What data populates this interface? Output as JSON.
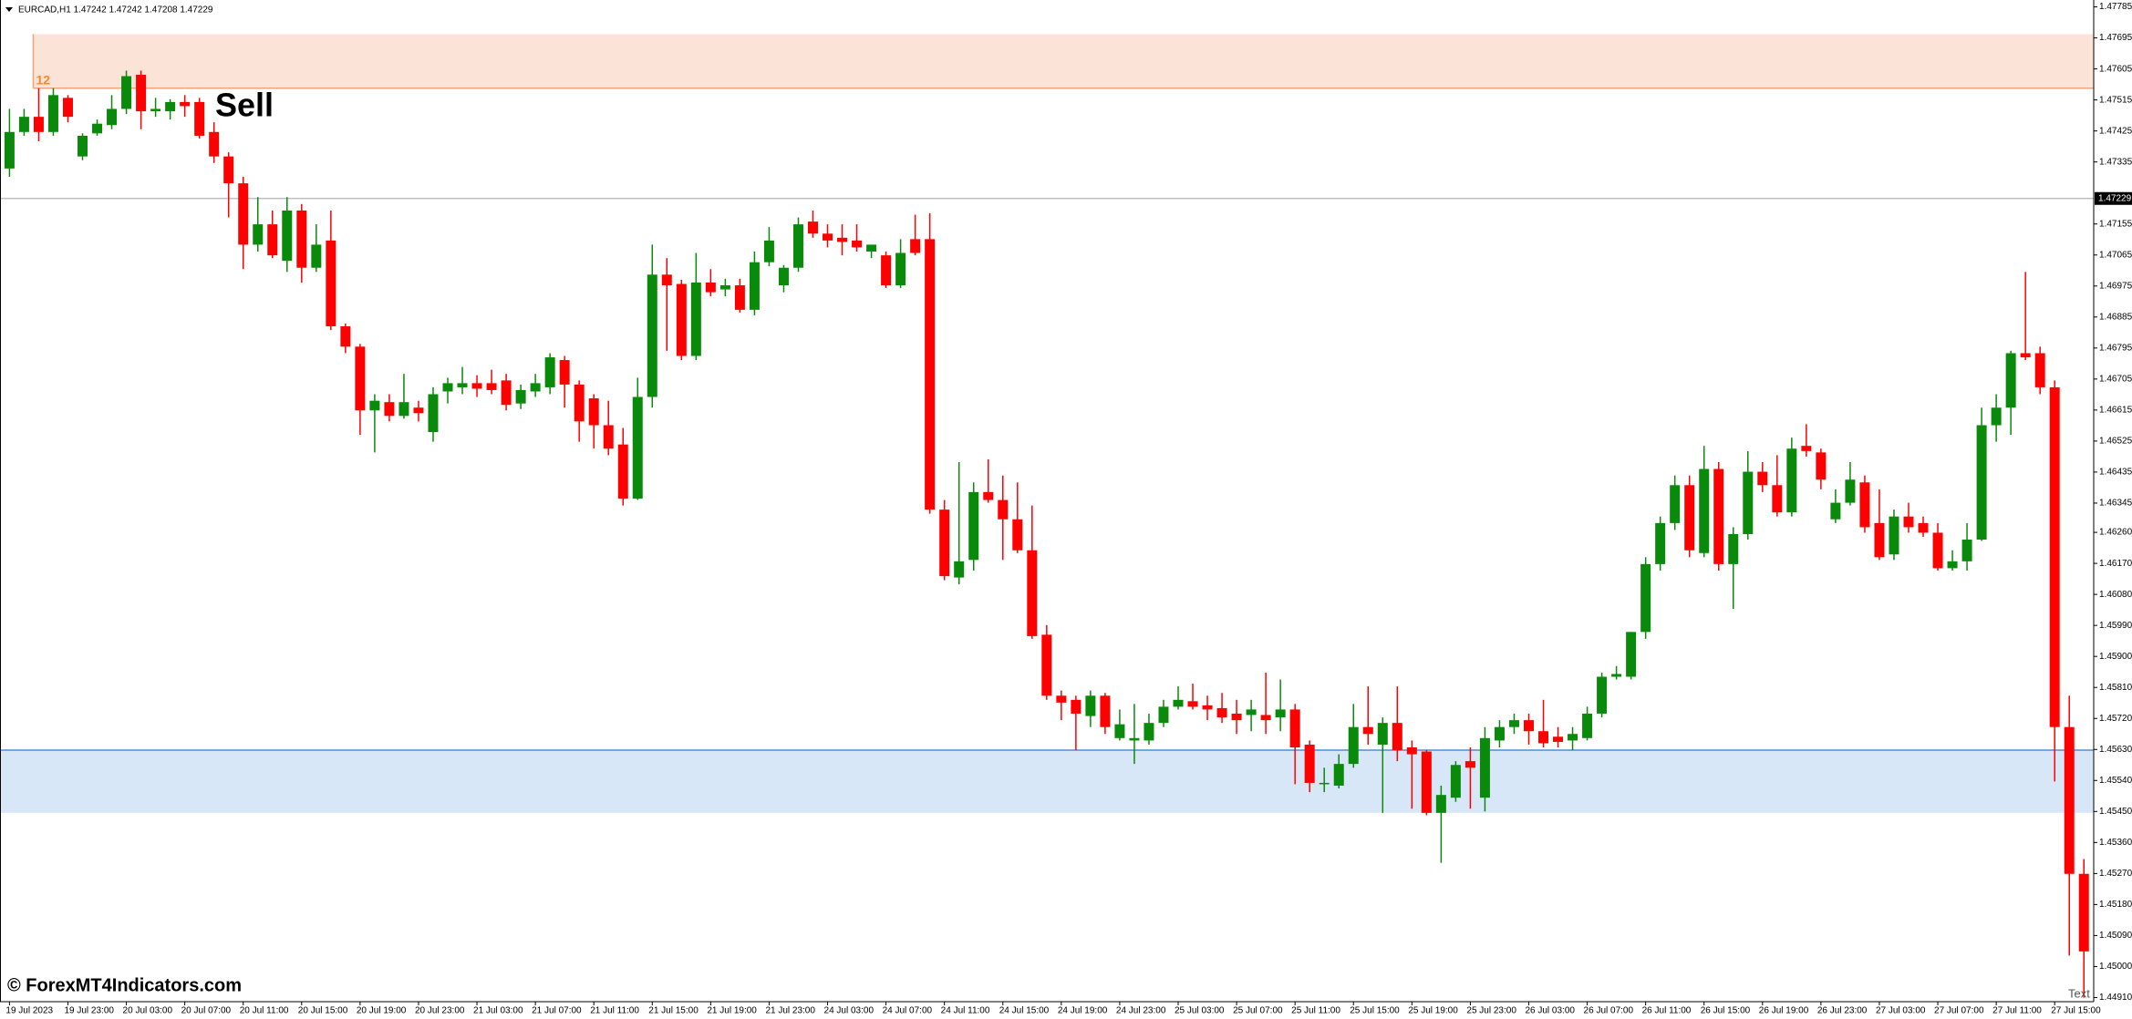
{
  "chart_data": {
    "type": "candlestick",
    "title": "EURCAD,H1  1.47242 1.47242 1.47208 1.47229",
    "categories": [
      "19 Jul 2023",
      null,
      null,
      null,
      "19 Jul 23:00",
      null,
      null,
      null,
      "20 Jul 03:00",
      null,
      null,
      null,
      "20 Jul 07:00",
      null,
      null,
      null,
      "20 Jul 11:00",
      null,
      null,
      null,
      "20 Jul 15:00",
      null,
      null,
      null,
      "20 Jul 19:00",
      null,
      null,
      null,
      "20 Jul 23:00",
      null,
      null,
      null,
      "21 Jul 03:00",
      null,
      null,
      null,
      "21 Jul 07:00",
      null,
      null,
      null,
      "21 Jul 11:00",
      null,
      null,
      null,
      "21 Jul 15:00",
      null,
      null,
      null,
      "21 Jul 19:00",
      null,
      null,
      null,
      "21 Jul 23:00",
      null,
      null,
      null,
      "24 Jul 03:00",
      null,
      null,
      null,
      "24 Jul 07:00",
      null,
      null,
      null,
      "24 Jul 11:00",
      null,
      null,
      null,
      "24 Jul 15:00",
      null,
      null,
      null,
      "24 Jul 19:00",
      null,
      null,
      null,
      "24 Jul 23:00",
      null,
      null,
      null,
      "25 Jul 03:00",
      null,
      null,
      null,
      "25 Jul 07:00",
      null,
      null,
      null,
      "25 Jul 11:00",
      null,
      null,
      null,
      "25 Jul 15:00",
      null,
      null,
      null,
      "25 Jul 19:00",
      null,
      null,
      null,
      "25 Jul 23:00",
      null,
      null,
      null,
      "26 Jul 03:00",
      null,
      null,
      null,
      "26 Jul 07:00",
      null,
      null,
      null,
      "26 Jul 11:00",
      null,
      null,
      null,
      "26 Jul 15:00",
      null,
      null,
      null,
      "26 Jul 19:00",
      null,
      null,
      null,
      "26 Jul 23:00",
      null,
      null,
      null,
      "27 Jul 03:00",
      null,
      null,
      null,
      "27 Jul 07:00",
      null,
      null,
      null,
      "27 Jul 11:00",
      null,
      null,
      null,
      "27 Jul 15:00",
      null,
      null
    ],
    "open": [
      1.47316,
      1.47422,
      1.47466,
      1.47422,
      1.47521,
      1.47351,
      1.47418,
      1.47442,
      1.47489,
      1.47588,
      1.47482,
      1.47482,
      1.47509,
      1.47509,
      1.47422,
      1.47351,
      1.47273,
      1.47095,
      1.47154,
      1.47048,
      1.47194,
      1.47028,
      1.47107,
      1.46858,
      1.46799,
      1.46614,
      1.46638,
      1.46598,
      1.46622,
      1.46551,
      1.46669,
      1.46681,
      1.46693,
      1.46693,
      1.46701,
      1.46634,
      1.46669,
      1.46681,
      1.4676,
      1.46689,
      1.46649,
      1.46571,
      1.46515,
      1.46358,
      1.46653,
      1.47008,
      1.46981,
      1.46772,
      1.46985,
      1.46965,
      1.46977,
      1.46906,
      1.47044,
      1.46977,
      1.47028,
      1.47162,
      1.47127,
      1.47115,
      1.47107,
      1.47075,
      1.47064,
      1.46977,
      1.47111,
      1.47111,
      1.46326,
      1.46129,
      1.4618,
      1.46377,
      1.46354,
      1.46298,
      1.46208,
      1.45963,
      1.45786,
      1.45774,
      1.45727,
      1.45786,
      1.45663,
      1.45656,
      1.45656,
      1.45707,
      1.45754,
      1.4577,
      1.45758,
      1.4575,
      1.45734,
      1.4573,
      1.4573,
      1.45723,
      1.45746,
      1.45644,
      1.45529,
      1.45525,
      1.45588,
      1.45695,
      1.45644,
      1.45707,
      1.45636,
      1.45624,
      1.45446,
      1.4549,
      1.45596,
      1.4549,
      1.45656,
      1.45695,
      1.45715,
      1.45683,
      1.45667,
      1.45656,
      1.45663,
      1.45734,
      1.45841,
      1.45841,
      1.45971,
      1.46168,
      1.46287,
      1.46397,
      1.462,
      1.46444,
      1.46168,
      1.46255,
      1.46436,
      1.46397,
      1.46318,
      1.46511,
      1.46492,
      1.46298,
      1.46346,
      1.46405,
      1.46287,
      1.46196,
      1.46306,
      1.46287,
      1.46259,
      1.46156,
      1.46176,
      1.46239,
      1.46571,
      1.46622,
      1.4678,
      1.4678,
      1.46681,
      1.45695,
      1.45269
    ],
    "high": [
      1.47489,
      1.47489,
      1.47549,
      1.47549,
      1.47529,
      1.47418,
      1.47458,
      1.47529,
      1.476,
      1.476,
      1.47521,
      1.47517,
      1.47529,
      1.47521,
      1.4745,
      1.47363,
      1.47292,
      1.47233,
      1.47194,
      1.47233,
      1.47213,
      1.47154,
      1.47194,
      1.46866,
      1.46807,
      1.46661,
      1.46661,
      1.4672,
      1.46642,
      1.46681,
      1.46709,
      1.4674,
      1.46716,
      1.46732,
      1.4672,
      1.46689,
      1.4672,
      1.4678,
      1.46772,
      1.46701,
      1.46661,
      1.46642,
      1.46563,
      1.46709,
      1.47095,
      1.47056,
      1.46993,
      1.47071,
      1.47024,
      1.46996,
      1.46996,
      1.47075,
      1.47146,
      1.47036,
      1.47174,
      1.47194,
      1.47154,
      1.47154,
      1.47154,
      1.47095,
      1.47075,
      1.47111,
      1.47182,
      1.47186,
      1.46354,
      1.46464,
      1.46405,
      1.46472,
      1.46425,
      1.46405,
      1.46338,
      1.45991,
      1.45801,
      1.45786,
      1.45801,
      1.45794,
      1.45746,
      1.45762,
      1.45734,
      1.45774,
      1.45813,
      1.45821,
      1.45786,
      1.45794,
      1.45774,
      1.45774,
      1.45853,
      1.45833,
      1.45762,
      1.45656,
      1.45577,
      1.45616,
      1.45762,
      1.45813,
      1.45723,
      1.45813,
      1.45656,
      1.45628,
      1.45525,
      1.45596,
      1.45636,
      1.45695,
      1.45715,
      1.45734,
      1.45734,
      1.45774,
      1.45695,
      1.45695,
      1.45754,
      1.45853,
      1.45872,
      1.45971,
      1.46188,
      1.46306,
      1.46425,
      1.46425,
      1.46511,
      1.46464,
      1.46275,
      1.46496,
      1.46464,
      1.46484,
      1.46535,
      1.46574,
      1.46503,
      1.46385,
      1.46464,
      1.46425,
      1.46385,
      1.46326,
      1.46346,
      1.46306,
      1.46287,
      1.46208,
      1.46287,
      1.46622,
      1.46661,
      1.46787,
      1.47016,
      1.46799,
      1.46701,
      1.45786,
      1.45312
    ],
    "low": [
      1.47292,
      1.47411,
      1.47395,
      1.47411,
      1.4745,
      1.4734,
      1.47411,
      1.4743,
      1.47474,
      1.4743,
      1.47466,
      1.47458,
      1.47466,
      1.47403,
      1.47332,
      1.47174,
      1.47024,
      1.47075,
      1.47056,
      1.47016,
      1.46985,
      1.47016,
      1.46847,
      1.4678,
      1.46543,
      1.46492,
      1.46582,
      1.4659,
      1.46582,
      1.46523,
      1.46634,
      1.46661,
      1.46653,
      1.46661,
      1.46614,
      1.46618,
      1.46653,
      1.46661,
      1.46622,
      1.46523,
      1.46503,
      1.46484,
      1.46338,
      1.46354,
      1.46622,
      1.46787,
      1.4676,
      1.4676,
      1.46945,
      1.46945,
      1.46898,
      1.4689,
      1.47032,
      1.46957,
      1.47016,
      1.47115,
      1.47087,
      1.47064,
      1.47075,
      1.47056,
      1.46969,
      1.46969,
      1.47064,
      1.46314,
      1.46121,
      1.46109,
      1.46149,
      1.46346,
      1.4618,
      1.462,
      1.45951,
      1.45774,
      1.45715,
      1.45628,
      1.45695,
      1.45675,
      1.45656,
      1.45588,
      1.45644,
      1.45695,
      1.45746,
      1.45746,
      1.45715,
      1.45707,
      1.45675,
      1.45683,
      1.45675,
      1.45683,
      1.45529,
      1.45506,
      1.45506,
      1.45517,
      1.45577,
      1.45644,
      1.45446,
      1.45596,
      1.45458,
      1.45439,
      1.45301,
      1.45478,
      1.45458,
      1.4545,
      1.45636,
      1.45675,
      1.45644,
      1.45636,
      1.45636,
      1.45628,
      1.45656,
      1.45723,
      1.45833,
      1.45833,
      1.45951,
      1.46149,
      1.46267,
      1.46188,
      1.46188,
      1.46149,
      1.46038,
      1.46239,
      1.46377,
      1.46306,
      1.46306,
      1.4648,
      1.46385,
      1.46287,
      1.46338,
      1.46259,
      1.4618,
      1.4618,
      1.46259,
      1.46247,
      1.46149,
      1.46149,
      1.46149,
      1.46235,
      1.46523,
      1.46543,
      1.4676,
      1.46661,
      1.45537,
      1.45032,
      1.4491
    ],
    "close": [
      1.47422,
      1.47466,
      1.47422,
      1.47529,
      1.47466,
      1.47411,
      1.47446,
      1.47489,
      1.47584,
      1.47482,
      1.47489,
      1.47509,
      1.47497,
      1.47411,
      1.47351,
      1.47273,
      1.47095,
      1.47154,
      1.47064,
      1.47194,
      1.47028,
      1.47095,
      1.46858,
      1.46799,
      1.46614,
      1.46642,
      1.46598,
      1.46638,
      1.46606,
      1.46661,
      1.46693,
      1.46693,
      1.46677,
      1.46673,
      1.4663,
      1.46673,
      1.46693,
      1.46768,
      1.46689,
      1.46582,
      1.46571,
      1.46503,
      1.46358,
      1.46653,
      1.47008,
      1.46977,
      1.46772,
      1.46985,
      1.46957,
      1.46977,
      1.46906,
      1.47044,
      1.47107,
      1.47028,
      1.47154,
      1.47127,
      1.47107,
      1.47103,
      1.47087,
      1.47095,
      1.46977,
      1.47071,
      1.47071,
      1.46326,
      1.46133,
      1.46176,
      1.46377,
      1.46354,
      1.46298,
      1.46208,
      1.45959,
      1.45786,
      1.45766,
      1.45734,
      1.45786,
      1.45695,
      1.45703,
      1.45663,
      1.45707,
      1.45754,
      1.45774,
      1.45754,
      1.45746,
      1.45723,
      1.45715,
      1.45746,
      1.45715,
      1.45746,
      1.45636,
      1.45533,
      1.45533,
      1.45588,
      1.45695,
      1.45675,
      1.45707,
      1.45628,
      1.45616,
      1.45446,
      1.45498,
      1.45585,
      1.45577,
      1.45663,
      1.45695,
      1.45715,
      1.45683,
      1.45648,
      1.45652,
      1.45675,
      1.45734,
      1.45841,
      1.45849,
      1.45971,
      1.46168,
      1.46287,
      1.46397,
      1.46208,
      1.46444,
      1.46168,
      1.46255,
      1.46436,
      1.46397,
      1.46318,
      1.46503,
      1.46496,
      1.46413,
      1.46346,
      1.46413,
      1.46275,
      1.46188,
      1.46306,
      1.46275,
      1.46259,
      1.46156,
      1.46176,
      1.46239,
      1.46571,
      1.46622,
      1.4678,
      1.46768,
      1.46681,
      1.45695,
      1.45269,
      1.45044
    ],
    "up_color": "#0a8a0a",
    "down_color": "#ff0000",
    "ylim": [
      1.44898,
      1.47805
    ],
    "yticks": [
      1.47785,
      1.47695,
      1.47605,
      1.47515,
      1.47425,
      1.47335,
      1.47155,
      1.47065,
      1.46975,
      1.46885,
      1.46795,
      1.46705,
      1.46615,
      1.46525,
      1.46435,
      1.46345,
      {
        "value": 1.4626,
        "label": "1.46260"
      },
      {
        "value": 1.4617,
        "label": "1.46170"
      },
      {
        "value": 1.4608,
        "label": "1.46080"
      },
      {
        "value": 1.4599,
        "label": "1.45990"
      },
      {
        "value": 1.459,
        "label": "1.45900"
      },
      {
        "value": 1.4581,
        "label": "1.45810"
      },
      {
        "value": 1.4572,
        "label": "1.45720"
      },
      {
        "value": 1.4563,
        "label": "1.45630"
      },
      {
        "value": 1.4554,
        "label": "1.45540"
      },
      {
        "value": 1.4545,
        "label": "1.45450"
      },
      {
        "value": 1.4536,
        "label": "1.45360"
      },
      {
        "value": 1.4527,
        "label": "1.45270"
      },
      {
        "value": 1.4518,
        "label": "1.45180"
      },
      {
        "value": 1.4509,
        "label": "1.45090"
      },
      {
        "value": 1.45,
        "label": "1.45000"
      },
      {
        "value": 1.4491,
        "label": "1.44910"
      }
    ],
    "current_price": 1.47229,
    "zones": [
      {
        "top": 1.47706,
        "bottom": 1.47549,
        "color": "#fce3d7",
        "edge_color": "#f0a27c"
      },
      {
        "top": 1.45628,
        "bottom": 1.45446,
        "color": "#d8e7f7",
        "edge_color": "#4f8fcf"
      }
    ],
    "annotations": [
      "12",
      "Sell",
      "Text"
    ],
    "watermark": "© ForexMT4Indicators.com"
  }
}
